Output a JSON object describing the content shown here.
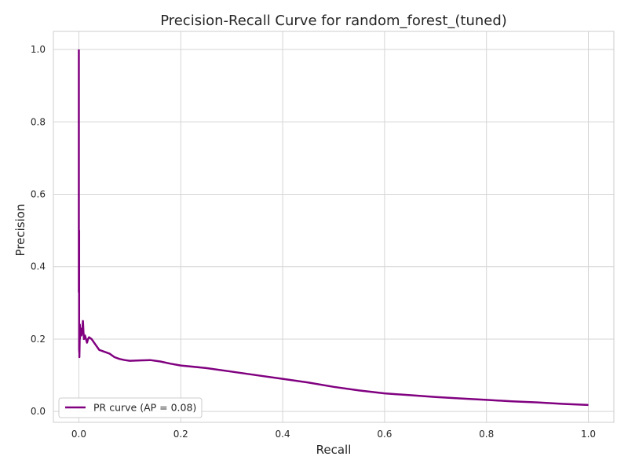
{
  "chart_data": {
    "type": "line",
    "title": "Precision-Recall Curve for random_forest_(tuned)",
    "xlabel": "Recall",
    "ylabel": "Precision",
    "xlim": [
      -0.05,
      1.05
    ],
    "ylim": [
      -0.03,
      1.05
    ],
    "xticks": [
      0.0,
      0.2,
      0.4,
      0.6,
      0.8,
      1.0
    ],
    "xtick_labels": [
      "0.0",
      "0.2",
      "0.4",
      "0.6",
      "0.8",
      "1.0"
    ],
    "yticks": [
      0.0,
      0.2,
      0.4,
      0.6,
      0.8,
      1.0
    ],
    "ytick_labels": [
      "0.0",
      "0.2",
      "0.4",
      "0.6",
      "0.8",
      "1.0"
    ],
    "grid": true,
    "legend_position": "lower-left",
    "series": [
      {
        "name": "PR curve (AP = 0.08)",
        "color": "#800080",
        "x": [
          0.0,
          0.0,
          0.0005,
          0.0005,
          0.001,
          0.001,
          0.0015,
          0.002,
          0.002,
          0.003,
          0.004,
          0.005,
          0.006,
          0.007,
          0.008,
          0.009,
          0.01,
          0.012,
          0.014,
          0.016,
          0.018,
          0.02,
          0.025,
          0.03,
          0.035,
          0.04,
          0.05,
          0.06,
          0.07,
          0.08,
          0.09,
          0.1,
          0.12,
          0.14,
          0.16,
          0.18,
          0.2,
          0.25,
          0.3,
          0.35,
          0.4,
          0.45,
          0.5,
          0.55,
          0.6,
          0.65,
          0.7,
          0.75,
          0.8,
          0.85,
          0.9,
          0.95,
          1.0
        ],
        "y": [
          1.0,
          0.33,
          0.5,
          0.17,
          0.16,
          0.15,
          0.19,
          0.24,
          0.2,
          0.23,
          0.22,
          0.21,
          0.22,
          0.23,
          0.25,
          0.22,
          0.2,
          0.21,
          0.2,
          0.19,
          0.2,
          0.205,
          0.2,
          0.19,
          0.18,
          0.17,
          0.165,
          0.16,
          0.15,
          0.145,
          0.142,
          0.14,
          0.141,
          0.142,
          0.138,
          0.132,
          0.127,
          0.12,
          0.11,
          0.1,
          0.09,
          0.08,
          0.068,
          0.058,
          0.05,
          0.045,
          0.04,
          0.036,
          0.032,
          0.028,
          0.025,
          0.021,
          0.018
        ]
      }
    ]
  }
}
